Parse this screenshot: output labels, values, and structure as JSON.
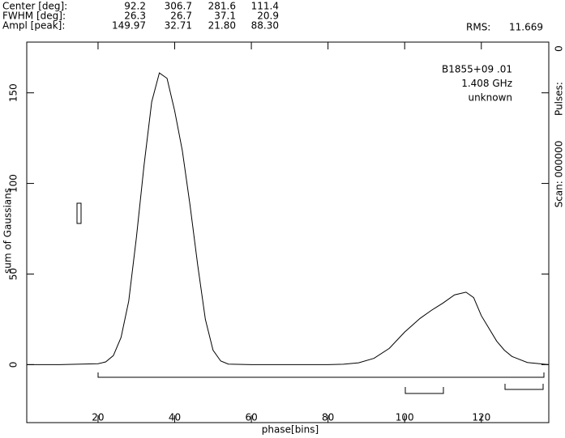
{
  "header": {
    "rows": [
      [
        "Center [deg]:",
        "92.2",
        "306.7",
        "281.6",
        "111.4"
      ],
      [
        "FWHM  [deg]:",
        "26.3",
        "26.7",
        "37.1",
        "20.9"
      ],
      [
        "Ampl  [peak]:",
        "149.97",
        "32.71",
        "21.80",
        "88.30"
      ]
    ],
    "rms_label": "RMS:",
    "rms_value": "11.669"
  },
  "side": [
    "0",
    "Pulses:",
    "Scan: 000000"
  ],
  "chart_data": {
    "type": "line",
    "xlabel": "phase[bins]",
    "ylabel": "sum of Gaussians",
    "annotations": [
      "B1855+09 .01",
      "1.408 GHz",
      "unknown"
    ],
    "color": "#000000",
    "x": [
      1.4,
      10,
      20,
      22,
      24,
      26,
      28,
      30,
      32,
      34,
      36,
      38,
      40,
      42,
      44,
      46,
      48,
      50,
      52,
      54,
      60,
      80,
      84,
      88,
      92,
      96,
      100,
      104,
      107,
      110,
      113,
      116,
      118,
      120,
      122,
      124,
      126,
      128,
      132,
      137.6
    ],
    "values": [
      0,
      0,
      0.5,
      1.5,
      5,
      15,
      35,
      70,
      110,
      145,
      161,
      158,
      140,
      118,
      88,
      55,
      25,
      8,
      2,
      0.3,
      0,
      0,
      0.2,
      1,
      3.5,
      9,
      18,
      25.5,
      30,
      34,
      38.5,
      40,
      37,
      27,
      20,
      13,
      8,
      4.5,
      1.2,
      0
    ],
    "xlim": [
      1.4,
      137.6
    ],
    "ylim": [
      -32,
      178
    ],
    "xticks": [
      20,
      40,
      60,
      80,
      100,
      120
    ],
    "yticks": [
      0,
      50,
      100,
      150
    ]
  }
}
